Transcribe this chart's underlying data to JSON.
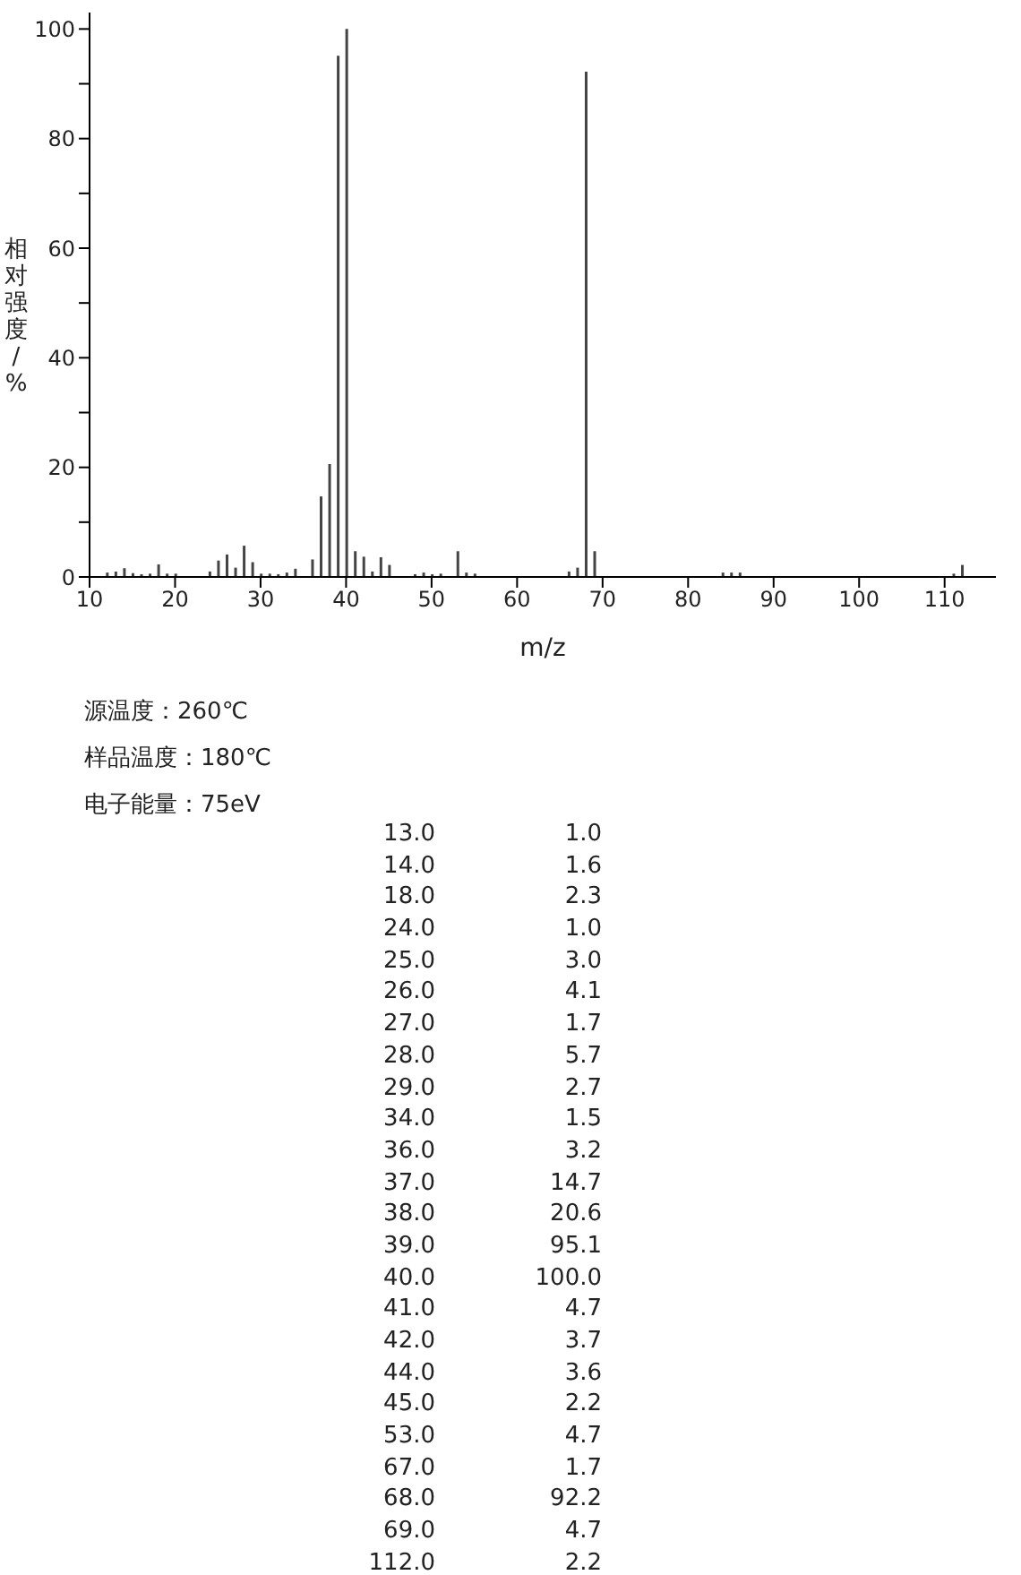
{
  "chart_data": [
    {
      "type": "bar",
      "xlabel": "m/z",
      "ylabel": "相对强度/%",
      "x": [
        12,
        13,
        14,
        15,
        16,
        17,
        18,
        19,
        20,
        24,
        25,
        26,
        27,
        28,
        29,
        30,
        31,
        32,
        33,
        34,
        36,
        37,
        38,
        39,
        40,
        41,
        42,
        43,
        44,
        45,
        48,
        49,
        50,
        51,
        53,
        54,
        55,
        66,
        67,
        68,
        69,
        84,
        85,
        86,
        111,
        112
      ],
      "values": [
        0.8,
        1.0,
        1.6,
        0.7,
        0.5,
        0.6,
        2.3,
        0.6,
        0.6,
        1.0,
        3.0,
        4.1,
        1.7,
        5.7,
        2.7,
        0.6,
        0.6,
        0.5,
        0.8,
        1.5,
        3.2,
        14.7,
        20.6,
        95.1,
        100.0,
        4.7,
        3.7,
        1.0,
        3.6,
        2.2,
        0.5,
        0.8,
        0.5,
        0.6,
        4.7,
        0.8,
        0.6,
        1.0,
        1.7,
        92.2,
        4.7,
        0.8,
        0.8,
        0.8,
        0.6,
        2.2
      ],
      "color": "#444444",
      "xlim": [
        10,
        116
      ],
      "xticks": [
        10,
        20,
        30,
        40,
        50,
        60,
        70,
        80,
        90,
        100,
        110
      ],
      "ylim": [
        0,
        103
      ],
      "yticks": [
        0,
        {
          "value": 10,
          "label": null
        },
        20,
        {
          "value": 30,
          "label": null
        },
        40,
        {
          "value": 50,
          "label": null
        },
        60,
        {
          "value": 70,
          "label": null
        },
        80,
        {
          "value": 90,
          "label": null
        },
        100
      ],
      "annotations": [
        "源温度：260℃",
        "样品温度：180℃",
        "电子能量：75eV"
      ]
    },
    {
      "type": "other",
      "annotations": [
        "13.0",
        "1.0",
        "14.0",
        "1.6",
        "18.0",
        "2.3",
        "24.0",
        "1.0",
        "25.0",
        "3.0",
        "26.0",
        "4.1",
        "27.0",
        "1.7",
        "28.0",
        "5.7",
        "29.0",
        "2.7",
        "34.0",
        "1.5",
        "36.0",
        "3.2",
        "37.0",
        "14.7",
        "38.0",
        "20.6",
        "39.0",
        "95.1",
        "40.0",
        "100.0",
        "41.0",
        "4.7",
        "42.0",
        "3.7",
        "44.0",
        "3.6",
        "45.0",
        "2.2",
        "53.0",
        "4.7",
        "67.0",
        "1.7",
        "68.0",
        "92.2",
        "69.0",
        "4.7",
        "112.0",
        "2.2"
      ]
    }
  ]
}
